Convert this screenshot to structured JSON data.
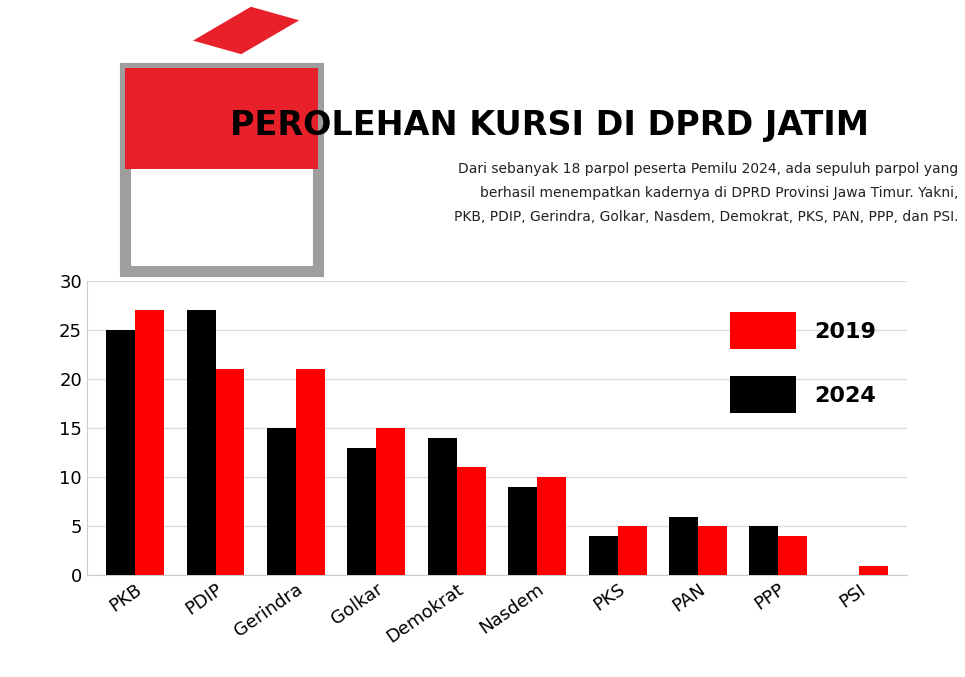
{
  "chart_data": {
    "type": "bar",
    "title": "PEROLEHAN KURSI DI DPRD JATIM",
    "subtitle": "Dari sebanyak 18 parpol peserta Pemilu 2024, ada sepuluh parpol yang berhasil menempatkan kadernya di DPRD Provinsi Jawa Timur. Yakni, PKB, PDIP, Gerindra, Golkar, Nasdem, Demokrat, PKS, PAN, PPP, dan PSI.",
    "categories": [
      "PKB",
      "PDIP",
      "Gerindra",
      "Golkar",
      "Demokrat",
      "Nasdem",
      "PKS",
      "PAN",
      "PPP",
      "PSI"
    ],
    "series": [
      {
        "name": "2024",
        "color": "#000000",
        "values": [
          25,
          27,
          15,
          13,
          14,
          9,
          4,
          6,
          5,
          0
        ]
      },
      {
        "name": "2019",
        "color": "#ff0000",
        "values": [
          27,
          21,
          21,
          15,
          11,
          10,
          5,
          5,
          4,
          1
        ]
      }
    ],
    "ylim": [
      0,
      30
    ],
    "yticks": [
      0,
      5,
      10,
      15,
      20,
      25,
      30
    ],
    "grid": true,
    "legend": "upper right",
    "data_labels": false
  }
}
